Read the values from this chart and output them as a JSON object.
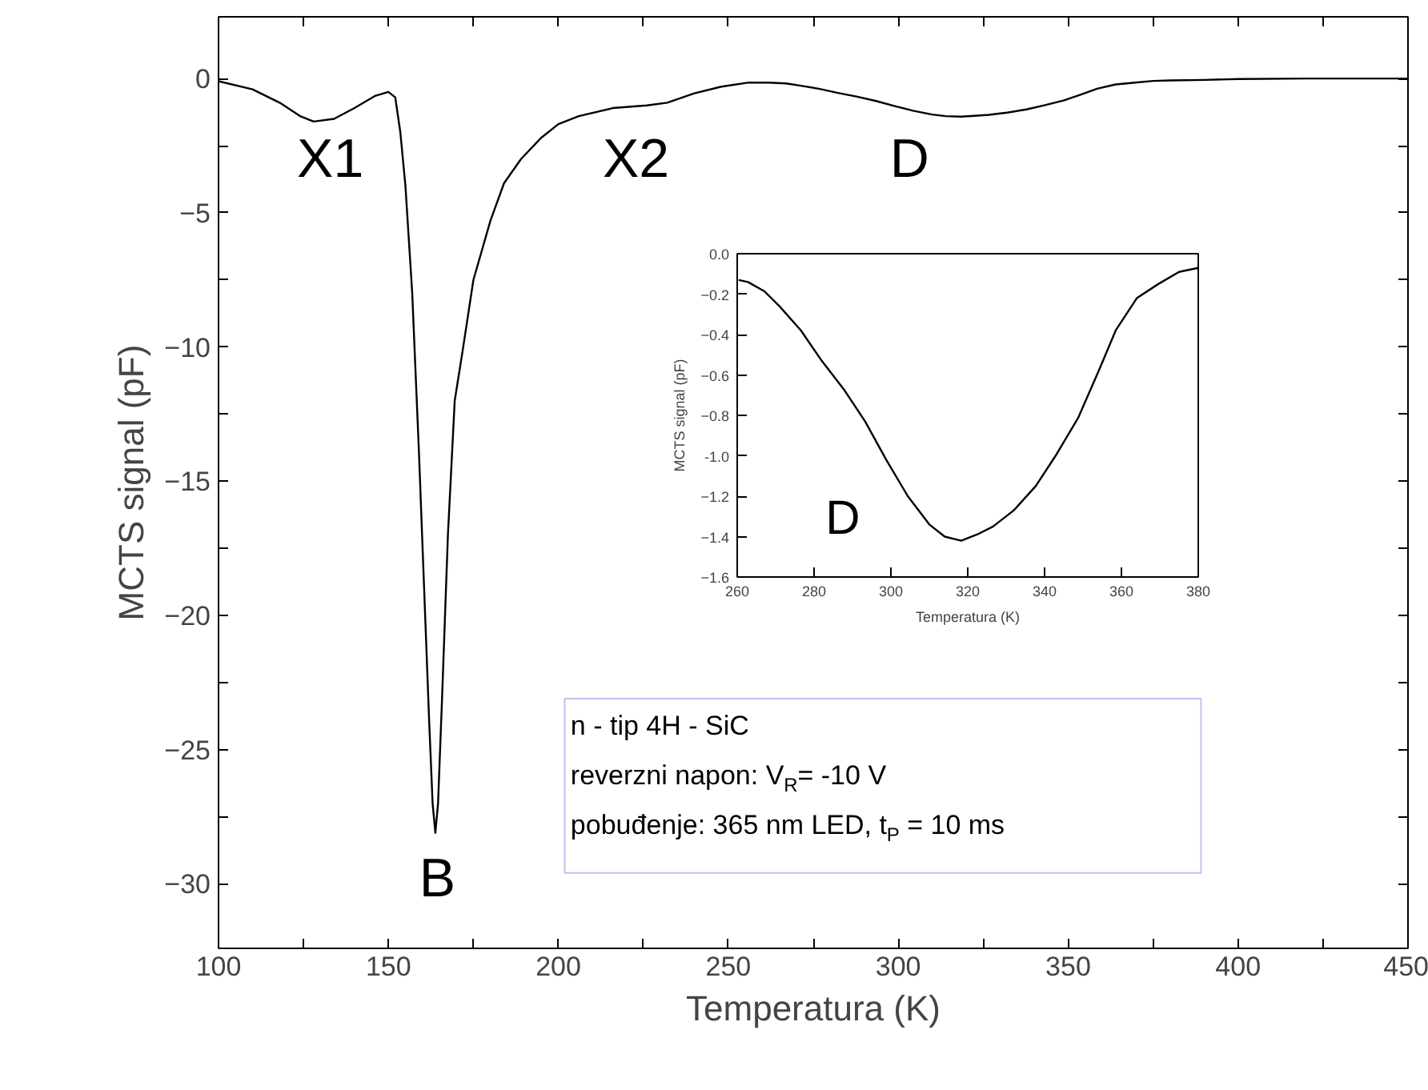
{
  "chart_data": [
    {
      "type": "line",
      "xlabel": "Temperatura (K)",
      "ylabel": "MCTS signal (pF)",
      "x": [
        100,
        110,
        118,
        124,
        128,
        134,
        140,
        146,
        150,
        152,
        153.5,
        155,
        157,
        159,
        160.5,
        162,
        163,
        163.8,
        164.6,
        165.8,
        167.5,
        169.5,
        172,
        175,
        180,
        184,
        189,
        195,
        200,
        206,
        216,
        226,
        232,
        240,
        248,
        256,
        262,
        267,
        271,
        276.6,
        282,
        287.7,
        293.3,
        298.8,
        304.4,
        310,
        314,
        318.3,
        322.4,
        326.6,
        332,
        337.7,
        343.2,
        348.8,
        354.3,
        358.5,
        364,
        369.6,
        375,
        380,
        390,
        400,
        420,
        450
      ],
      "series": [
        {
          "color": "#000000",
          "values": [
            -0.1,
            -0.4,
            -0.9,
            -1.4,
            -1.6,
            -1.5,
            -1.1,
            -0.65,
            -0.5,
            -0.7,
            -2.0,
            -4,
            -8,
            -14,
            -19,
            -24,
            -27,
            -28.1,
            -27,
            -23,
            -17,
            -12,
            -10,
            -7.5,
            -5.3,
            -3.9,
            -3.0,
            -2.2,
            -1.7,
            -1.4,
            -1.1,
            -1.0,
            -0.9,
            -0.55,
            -0.3,
            -0.15,
            -0.15,
            -0.18,
            -0.26,
            -0.38,
            -0.53,
            -0.67,
            -0.83,
            -1.02,
            -1.2,
            -1.34,
            -1.4,
            -1.42,
            -1.39,
            -1.35,
            -1.27,
            -1.15,
            -0.99,
            -0.81,
            -0.57,
            -0.38,
            -0.22,
            -0.15,
            -0.09,
            -0.07,
            -0.05,
            -0.02,
            0,
            0
          ]
        }
      ],
      "xlim": [
        100,
        450
      ],
      "ylim": [
        -32.4,
        2.3
      ],
      "xticks": [
        100,
        {
          "value": 125,
          "label": null
        },
        150,
        {
          "value": 175,
          "label": null
        },
        200,
        {
          "value": 225,
          "label": null
        },
        250,
        {
          "value": 275,
          "label": null
        },
        300,
        {
          "value": 325,
          "label": null
        },
        350,
        {
          "value": 375,
          "label": null
        },
        400,
        {
          "value": 425,
          "label": null
        },
        450
      ],
      "yticks": [
        0,
        {
          "value": -2.5,
          "label": null
        },
        -5,
        {
          "value": -7.5,
          "label": null
        },
        -10,
        {
          "value": -12.5,
          "label": null
        },
        -15,
        {
          "value": -17.5,
          "label": null
        },
        -20,
        {
          "value": -22.5,
          "label": null
        },
        -25,
        {
          "value": -27.5,
          "label": null
        },
        -30
      ],
      "annotations": [
        "X1",
        "B",
        "X2",
        "D",
        "n - tip 4H - SiC",
        "reverzni napon: V$_{R}$= -10 V",
        "pobuđenje: 365 nm LED, t$_{P}$ = 10 ms"
      ]
    },
    {
      "type": "line",
      "xlabel": "Temperatura (K)",
      "ylabel": "MCTS signal (pF)",
      "x": [
        260.4,
        262.8,
        267,
        271,
        276.6,
        282,
        287.7,
        293.3,
        298.8,
        304.4,
        310,
        314,
        318.3,
        322.4,
        326.6,
        332,
        337.7,
        343.2,
        348.8,
        354.3,
        358.5,
        364,
        369.6,
        375,
        380
      ],
      "series": [
        {
          "color": "#000000",
          "values": [
            -0.13,
            -0.14,
            -0.185,
            -0.26,
            -0.38,
            -0.53,
            -0.67,
            -0.83,
            -1.02,
            -1.2,
            -1.34,
            -1.4,
            -1.42,
            -1.39,
            -1.35,
            -1.27,
            -1.15,
            -0.99,
            -0.81,
            -0.57,
            -0.38,
            -0.22,
            -0.15,
            -0.09,
            -0.07
          ]
        }
      ],
      "xlim": [
        260,
        380
      ],
      "ylim": [
        -1.6,
        0
      ],
      "xticks": [
        260,
        280,
        300,
        320,
        340,
        360,
        380
      ],
      "yticks": [
        {
          "value": 0,
          "label": "0.0"
        },
        -0.2,
        -0.4,
        -0.6,
        -0.8,
        {
          "value": -1,
          "label": "-1.0"
        },
        -1.2,
        -1.4,
        -1.6
      ],
      "annotations": [
        "D"
      ]
    }
  ]
}
